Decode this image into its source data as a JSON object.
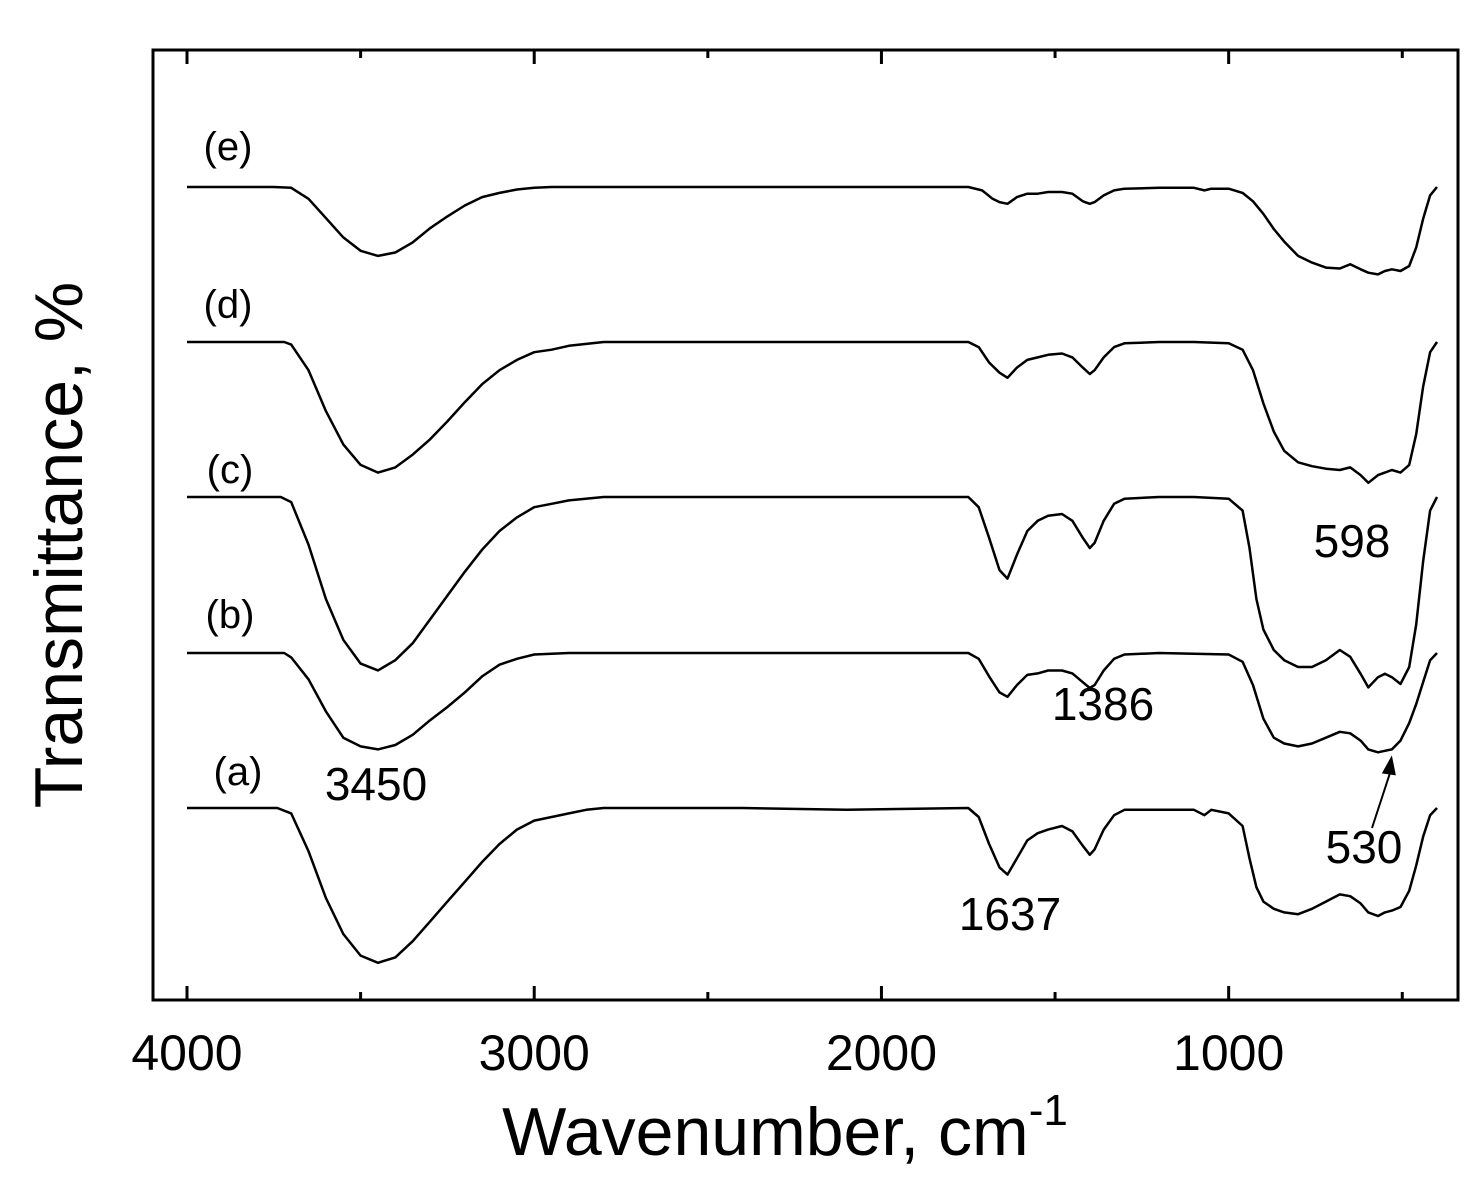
{
  "chart_data": {
    "type": "line",
    "title": "",
    "xlabel": "Wavenumber, cm",
    "xlabel_sup": "-1",
    "ylabel": "Transmittance, %",
    "xlim": [
      4000,
      400
    ],
    "x_reversed": true,
    "x_ticks": [
      4000,
      3000,
      2000,
      1000
    ],
    "x_tick_labels": [
      "4000",
      "3000",
      "2000",
      "1000"
    ],
    "x_minor_ticks": [
      3500,
      2500,
      1500,
      500
    ],
    "y_ticks_shown": false,
    "grid": false,
    "legend": "none",
    "series": [
      {
        "name": "(e)",
        "points": [
          [
            4000,
            100
          ],
          [
            3750,
            100
          ],
          [
            3700,
            99
          ],
          [
            3650,
            86
          ],
          [
            3600,
            63
          ],
          [
            3550,
            40
          ],
          [
            3500,
            24
          ],
          [
            3450,
            18
          ],
          [
            3400,
            22
          ],
          [
            3350,
            34
          ],
          [
            3300,
            51
          ],
          [
            3250,
            65
          ],
          [
            3200,
            78
          ],
          [
            3150,
            88
          ],
          [
            3100,
            93
          ],
          [
            3050,
            97
          ],
          [
            3000,
            99
          ],
          [
            2950,
            100
          ],
          [
            2800,
            100
          ],
          [
            2400,
            100
          ],
          [
            1750,
            100
          ],
          [
            1710,
            96
          ],
          [
            1680,
            86
          ],
          [
            1660,
            82
          ],
          [
            1637,
            80
          ],
          [
            1610,
            88
          ],
          [
            1580,
            92
          ],
          [
            1550,
            92
          ],
          [
            1520,
            94
          ],
          [
            1480,
            94
          ],
          [
            1450,
            92
          ],
          [
            1420,
            83
          ],
          [
            1400,
            80
          ],
          [
            1386,
            82
          ],
          [
            1360,
            90
          ],
          [
            1330,
            96
          ],
          [
            1300,
            98
          ],
          [
            1200,
            99
          ],
          [
            1100,
            99
          ],
          [
            1070,
            96
          ],
          [
            1050,
            98
          ],
          [
            1000,
            98
          ],
          [
            960,
            93
          ],
          [
            930,
            83
          ],
          [
            900,
            68
          ],
          [
            870,
            50
          ],
          [
            840,
            35
          ],
          [
            800,
            18
          ],
          [
            760,
            10
          ],
          [
            720,
            4
          ],
          [
            680,
            3
          ],
          [
            650,
            8
          ],
          [
            620,
            2
          ],
          [
            598,
            -2
          ],
          [
            570,
            -4
          ],
          [
            550,
            0
          ],
          [
            530,
            2
          ],
          [
            505,
            0
          ],
          [
            480,
            6
          ],
          [
            460,
            28
          ],
          [
            440,
            62
          ],
          [
            420,
            90
          ],
          [
            400,
            100
          ]
        ]
      },
      {
        "name": "(d)",
        "points": [
          [
            4000,
            100
          ],
          [
            3720,
            100
          ],
          [
            3700,
            98
          ],
          [
            3650,
            78
          ],
          [
            3600,
            46
          ],
          [
            3550,
            20
          ],
          [
            3500,
            4
          ],
          [
            3450,
            -2
          ],
          [
            3400,
            2
          ],
          [
            3350,
            12
          ],
          [
            3300,
            24
          ],
          [
            3250,
            38
          ],
          [
            3200,
            53
          ],
          [
            3150,
            67
          ],
          [
            3100,
            78
          ],
          [
            3050,
            86
          ],
          [
            3000,
            92
          ],
          [
            2950,
            94
          ],
          [
            2900,
            97
          ],
          [
            2800,
            100
          ],
          [
            2400,
            100
          ],
          [
            1750,
            100
          ],
          [
            1720,
            96
          ],
          [
            1690,
            84
          ],
          [
            1660,
            76
          ],
          [
            1637,
            72
          ],
          [
            1610,
            80
          ],
          [
            1580,
            86
          ],
          [
            1550,
            88
          ],
          [
            1520,
            90
          ],
          [
            1480,
            91
          ],
          [
            1450,
            88
          ],
          [
            1420,
            80
          ],
          [
            1400,
            75
          ],
          [
            1386,
            78
          ],
          [
            1360,
            88
          ],
          [
            1330,
            96
          ],
          [
            1300,
            99
          ],
          [
            1200,
            100
          ],
          [
            1100,
            100
          ],
          [
            1000,
            99
          ],
          [
            960,
            94
          ],
          [
            930,
            78
          ],
          [
            900,
            52
          ],
          [
            870,
            30
          ],
          [
            840,
            15
          ],
          [
            800,
            6
          ],
          [
            760,
            3
          ],
          [
            720,
            1
          ],
          [
            680,
            0
          ],
          [
            650,
            2
          ],
          [
            620,
            -4
          ],
          [
            598,
            -10
          ],
          [
            570,
            -4
          ],
          [
            550,
            -2
          ],
          [
            530,
            0
          ],
          [
            505,
            -2
          ],
          [
            480,
            4
          ],
          [
            460,
            28
          ],
          [
            440,
            65
          ],
          [
            420,
            92
          ],
          [
            400,
            100
          ]
        ]
      },
      {
        "name": "(c)",
        "points": [
          [
            4000,
            100
          ],
          [
            3730,
            100
          ],
          [
            3700,
            97
          ],
          [
            3650,
            72
          ],
          [
            3600,
            40
          ],
          [
            3550,
            16
          ],
          [
            3500,
            2
          ],
          [
            3450,
            -2
          ],
          [
            3400,
            4
          ],
          [
            3350,
            14
          ],
          [
            3300,
            28
          ],
          [
            3250,
            42
          ],
          [
            3200,
            56
          ],
          [
            3150,
            69
          ],
          [
            3100,
            80
          ],
          [
            3050,
            88
          ],
          [
            3000,
            94
          ],
          [
            2950,
            96
          ],
          [
            2900,
            98
          ],
          [
            2800,
            100
          ],
          [
            2400,
            100
          ],
          [
            1750,
            100
          ],
          [
            1720,
            94
          ],
          [
            1690,
            76
          ],
          [
            1660,
            57
          ],
          [
            1637,
            52
          ],
          [
            1610,
            66
          ],
          [
            1580,
            80
          ],
          [
            1550,
            86
          ],
          [
            1520,
            89
          ],
          [
            1480,
            90
          ],
          [
            1450,
            86
          ],
          [
            1420,
            76
          ],
          [
            1400,
            70
          ],
          [
            1386,
            73
          ],
          [
            1360,
            86
          ],
          [
            1330,
            96
          ],
          [
            1300,
            99
          ],
          [
            1200,
            100
          ],
          [
            1100,
            100
          ],
          [
            1000,
            99
          ],
          [
            960,
            92
          ],
          [
            940,
            70
          ],
          [
            920,
            40
          ],
          [
            900,
            22
          ],
          [
            870,
            10
          ],
          [
            840,
            4
          ],
          [
            800,
            0
          ],
          [
            760,
            0
          ],
          [
            720,
            4
          ],
          [
            680,
            10
          ],
          [
            650,
            6
          ],
          [
            620,
            -4
          ],
          [
            598,
            -12
          ],
          [
            570,
            -6
          ],
          [
            550,
            -4
          ],
          [
            530,
            -6
          ],
          [
            505,
            -10
          ],
          [
            480,
            0
          ],
          [
            460,
            25
          ],
          [
            440,
            62
          ],
          [
            420,
            92
          ],
          [
            400,
            100
          ]
        ]
      },
      {
        "name": "(b)",
        "points": [
          [
            4000,
            100
          ],
          [
            3720,
            100
          ],
          [
            3700,
            97
          ],
          [
            3650,
            82
          ],
          [
            3600,
            60
          ],
          [
            3550,
            42
          ],
          [
            3500,
            36
          ],
          [
            3450,
            34
          ],
          [
            3400,
            37
          ],
          [
            3350,
            44
          ],
          [
            3300,
            54
          ],
          [
            3250,
            63
          ],
          [
            3200,
            73
          ],
          [
            3150,
            84
          ],
          [
            3100,
            92
          ],
          [
            3050,
            96
          ],
          [
            3000,
            99
          ],
          [
            2900,
            100
          ],
          [
            2400,
            100
          ],
          [
            1750,
            100
          ],
          [
            1720,
            96
          ],
          [
            1690,
            84
          ],
          [
            1660,
            73
          ],
          [
            1637,
            70
          ],
          [
            1610,
            78
          ],
          [
            1580,
            85
          ],
          [
            1550,
            86
          ],
          [
            1520,
            88
          ],
          [
            1480,
            88
          ],
          [
            1450,
            86
          ],
          [
            1420,
            80
          ],
          [
            1400,
            76
          ],
          [
            1386,
            78
          ],
          [
            1360,
            88
          ],
          [
            1330,
            96
          ],
          [
            1300,
            99
          ],
          [
            1200,
            100
          ],
          [
            1000,
            99
          ],
          [
            960,
            94
          ],
          [
            930,
            78
          ],
          [
            900,
            55
          ],
          [
            870,
            42
          ],
          [
            840,
            38
          ],
          [
            800,
            36
          ],
          [
            760,
            38
          ],
          [
            720,
            42
          ],
          [
            680,
            46
          ],
          [
            650,
            45
          ],
          [
            620,
            40
          ],
          [
            598,
            34
          ],
          [
            570,
            32
          ],
          [
            550,
            33
          ],
          [
            530,
            34
          ],
          [
            505,
            40
          ],
          [
            480,
            52
          ],
          [
            460,
            65
          ],
          [
            440,
            80
          ],
          [
            420,
            95
          ],
          [
            400,
            100
          ]
        ]
      },
      {
        "name": "(a)",
        "points": [
          [
            4000,
            100
          ],
          [
            3740,
            100
          ],
          [
            3700,
            97
          ],
          [
            3650,
            76
          ],
          [
            3600,
            50
          ],
          [
            3550,
            30
          ],
          [
            3500,
            18
          ],
          [
            3450,
            14
          ],
          [
            3400,
            17
          ],
          [
            3350,
            26
          ],
          [
            3300,
            37
          ],
          [
            3250,
            48
          ],
          [
            3200,
            59
          ],
          [
            3150,
            70
          ],
          [
            3100,
            80
          ],
          [
            3050,
            88
          ],
          [
            3000,
            93
          ],
          [
            2950,
            95
          ],
          [
            2900,
            97
          ],
          [
            2850,
            99
          ],
          [
            2800,
            100
          ],
          [
            2400,
            100
          ],
          [
            2100,
            99
          ],
          [
            1750,
            100
          ],
          [
            1720,
            95
          ],
          [
            1690,
            80
          ],
          [
            1660,
            67
          ],
          [
            1637,
            63
          ],
          [
            1610,
            72
          ],
          [
            1580,
            82
          ],
          [
            1550,
            86
          ],
          [
            1520,
            88
          ],
          [
            1480,
            90
          ],
          [
            1450,
            87
          ],
          [
            1420,
            79
          ],
          [
            1400,
            74
          ],
          [
            1386,
            77
          ],
          [
            1360,
            88
          ],
          [
            1330,
            96
          ],
          [
            1300,
            99
          ],
          [
            1200,
            99
          ],
          [
            1100,
            99
          ],
          [
            1070,
            96
          ],
          [
            1050,
            99
          ],
          [
            1000,
            97
          ],
          [
            960,
            90
          ],
          [
            940,
            72
          ],
          [
            920,
            56
          ],
          [
            900,
            48
          ],
          [
            870,
            44
          ],
          [
            840,
            42
          ],
          [
            800,
            41
          ],
          [
            760,
            44
          ],
          [
            720,
            48
          ],
          [
            680,
            52
          ],
          [
            650,
            51
          ],
          [
            620,
            47
          ],
          [
            598,
            42
          ],
          [
            570,
            40
          ],
          [
            550,
            42
          ],
          [
            530,
            43
          ],
          [
            505,
            45
          ],
          [
            480,
            54
          ],
          [
            460,
            68
          ],
          [
            440,
            84
          ],
          [
            420,
            96
          ],
          [
            400,
            100
          ]
        ]
      }
    ],
    "annotations": [
      {
        "text": "3450",
        "x": 3450
      },
      {
        "text": "1637",
        "x": 1637
      },
      {
        "text": "1386",
        "x": 1386
      },
      {
        "text": "598",
        "x": 598
      },
      {
        "text": "530",
        "x": 530
      }
    ]
  }
}
